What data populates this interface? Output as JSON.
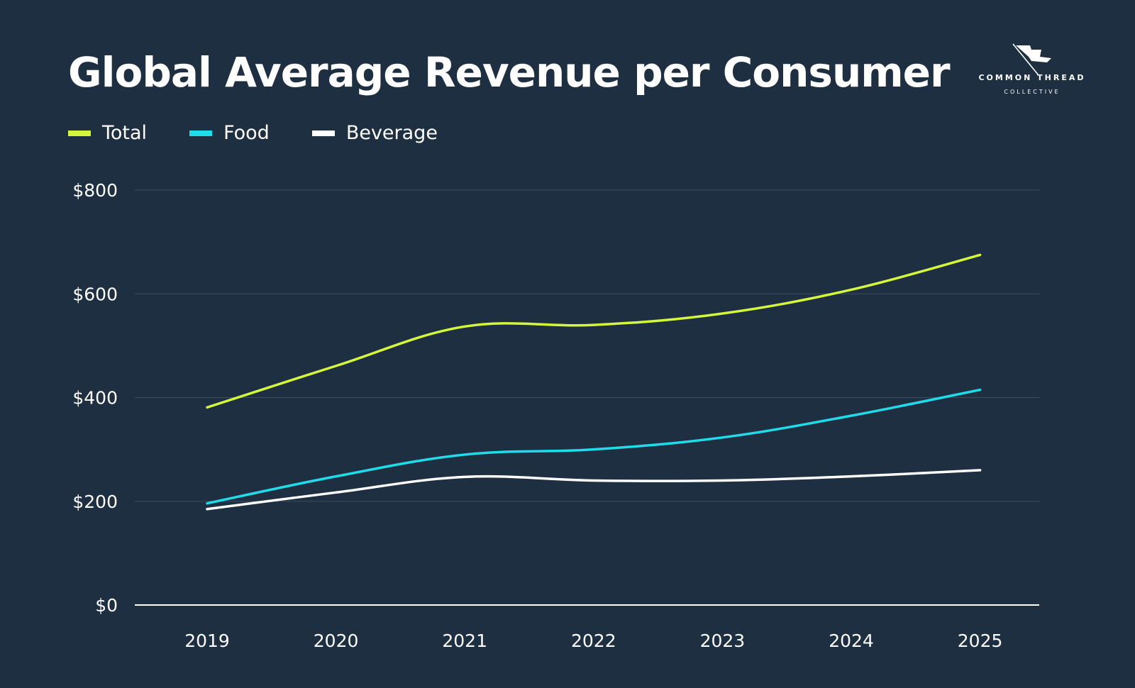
{
  "title": "Global Average Revenue per Consumer",
  "logo": {
    "line1": "COMMON THREAD",
    "line2": "COLLECTIVE",
    "icon": "flag-needle-icon"
  },
  "colors": {
    "background": "#1e2f41",
    "gridline": "#3d4e60",
    "axis": "#ffffff"
  },
  "legend": [
    {
      "label": "Total",
      "color": "#d4f73c"
    },
    {
      "label": "Food",
      "color": "#1fdcea"
    },
    {
      "label": "Beverage",
      "color": "#ffffff"
    }
  ],
  "chart_data": {
    "type": "line",
    "title": "Global Average Revenue per Consumer",
    "xlabel": "",
    "ylabel": "",
    "categories": [
      "2019",
      "2020",
      "2021",
      "2022",
      "2023",
      "2024",
      "2025"
    ],
    "y_ticks": [
      "$0",
      "$200",
      "$400",
      "$600",
      "$800"
    ],
    "ylim": [
      0,
      800
    ],
    "grid": true,
    "legend_position": "top-left",
    "smooth": true,
    "series": [
      {
        "name": "Total",
        "color": "#d4f73c",
        "values": [
          381,
          461,
          537,
          540,
          562,
          608,
          675
        ]
      },
      {
        "name": "Food",
        "color": "#1fdcea",
        "values": [
          196,
          248,
          290,
          300,
          323,
          365,
          415
        ]
      },
      {
        "name": "Beverage",
        "color": "#ffffff",
        "values": [
          185,
          217,
          247,
          240,
          240,
          248,
          260
        ]
      }
    ]
  }
}
